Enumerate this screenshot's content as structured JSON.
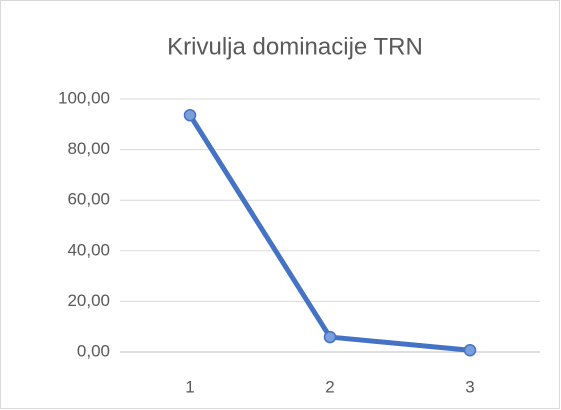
{
  "chart_data": {
    "type": "line",
    "title": "Krivulja dominacije TRN",
    "categories": [
      "1",
      "2",
      "3"
    ],
    "values": [
      93.6,
      5.9,
      0.7
    ],
    "color": "#4472c4",
    "ylim": [
      0,
      100
    ],
    "yticks": [
      {
        "value": 0,
        "label": "0,00"
      },
      {
        "value": 20,
        "label": "20,00"
      },
      {
        "value": 40,
        "label": "40,00"
      },
      {
        "value": 60,
        "label": "60,00"
      },
      {
        "value": 80,
        "label": "80,00"
      },
      {
        "value": 100,
        "label": "100,00"
      }
    ],
    "grid": true
  }
}
